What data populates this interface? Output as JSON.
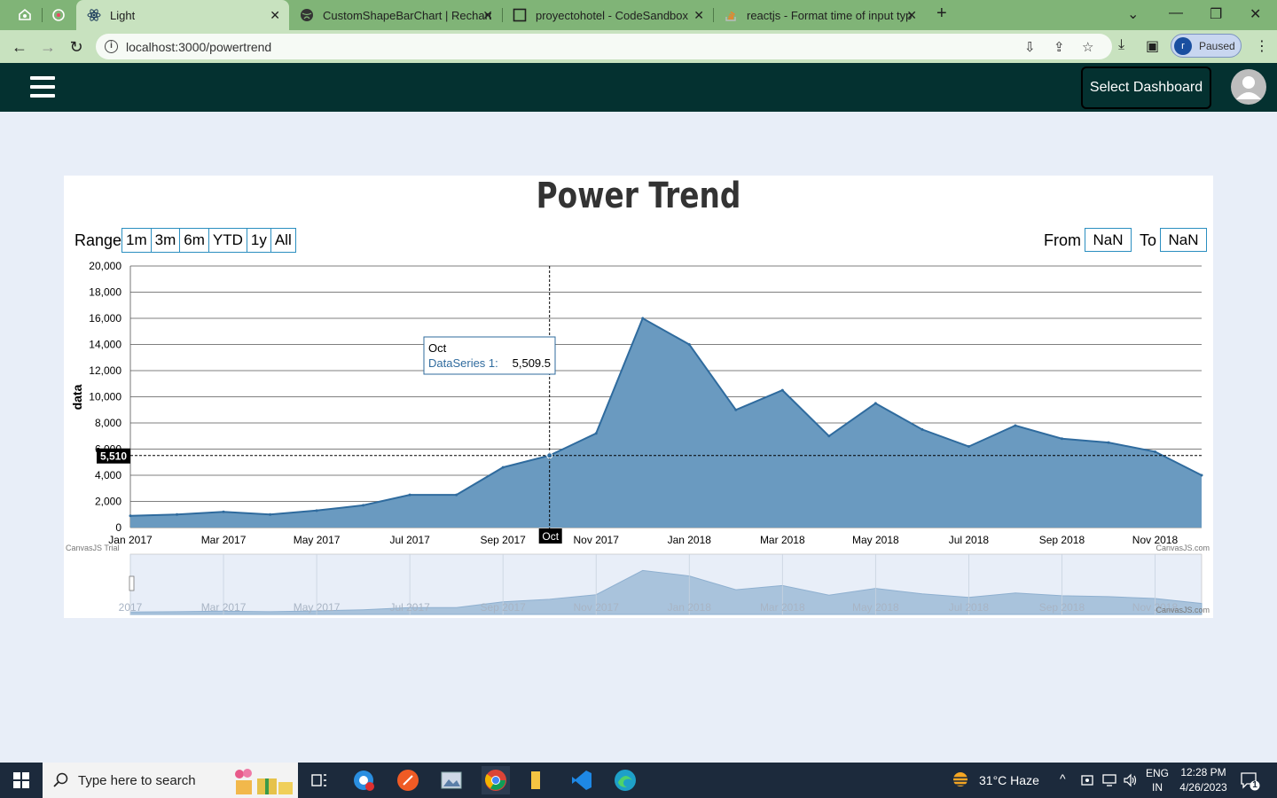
{
  "browser": {
    "tabs": [
      {
        "title": "Light",
        "active": true
      },
      {
        "title": "CustomShapeBarChart | Recharts",
        "active": false
      },
      {
        "title": "proyectohotel - CodeSandbox",
        "active": false
      },
      {
        "title": "reactjs - Format time of input typ",
        "active": false
      }
    ],
    "url": "localhost:3000/powertrend",
    "profile_initial": "r",
    "profile_status": "Paused"
  },
  "app": {
    "select_dashboard_label": "Select Dashboard"
  },
  "chart_controls": {
    "range_label": "Range",
    "range_buttons": [
      "1m",
      "3m",
      "6m",
      "YTD",
      "1y",
      "All"
    ],
    "from_label": "From",
    "from_value": "NaN",
    "to_label": "To",
    "to_value": "NaN"
  },
  "chart_data": {
    "type": "area",
    "title": "Power Trend",
    "ylabel": "data",
    "xlabel": "",
    "ylim": [
      0,
      20000
    ],
    "yticks": [
      "0",
      "2,000",
      "4,000",
      "6,000",
      "8,000",
      "10,000",
      "12,000",
      "14,000",
      "16,000",
      "18,000",
      "20,000"
    ],
    "xticks": [
      "Jan 2017",
      "Mar 2017",
      "May 2017",
      "Jul 2017",
      "Sep 2017",
      "Nov 2017",
      "Jan 2018",
      "Mar 2018",
      "May 2018",
      "Jul 2018",
      "Sep 2018",
      "Nov 2018"
    ],
    "grid": true,
    "series": [
      {
        "name": "DataSeries 1",
        "color": "#6a9ac0",
        "line_color": "#2f6b9e",
        "x": [
          "2017-01",
          "2017-02",
          "2017-03",
          "2017-04",
          "2017-05",
          "2017-06",
          "2017-07",
          "2017-08",
          "2017-09",
          "2017-10",
          "2017-11",
          "2017-12",
          "2018-01",
          "2018-02",
          "2018-03",
          "2018-04",
          "2018-05",
          "2018-06",
          "2018-07",
          "2018-08",
          "2018-09",
          "2018-10",
          "2018-11",
          "2018-12"
        ],
        "values": [
          900,
          1000,
          1200,
          1000,
          1300,
          1700,
          2500,
          2500,
          4600,
          5510,
          7200,
          16000,
          14000,
          9000,
          10500,
          7000,
          9500,
          7500,
          6200,
          7800,
          6800,
          6500,
          5800,
          4000
        ]
      }
    ],
    "tooltip": {
      "title": "Oct",
      "series_label": "DataSeries 1:",
      "value": "5,509.5"
    },
    "crosshair_x_label": "Oct",
    "crosshair_y_label": "5,510",
    "credit_left": "CanvasJS Trial",
    "credit_right": "CanvasJS.com",
    "navigator_xticks": [
      "2017",
      "Mar 2017",
      "May 2017",
      "Jul 2017",
      "Sep 2017",
      "Nov 2017",
      "Jan 2018",
      "Mar 2018",
      "May 2018",
      "Jul 2018",
      "Sep 2018",
      "Nov 2018"
    ]
  },
  "taskbar": {
    "search_placeholder": "Type here to search",
    "weather": "31°C  Haze",
    "lang1": "ENG",
    "lang2": "IN",
    "time": "12:28 PM",
    "date": "4/26/2023",
    "notification_count": "1"
  }
}
